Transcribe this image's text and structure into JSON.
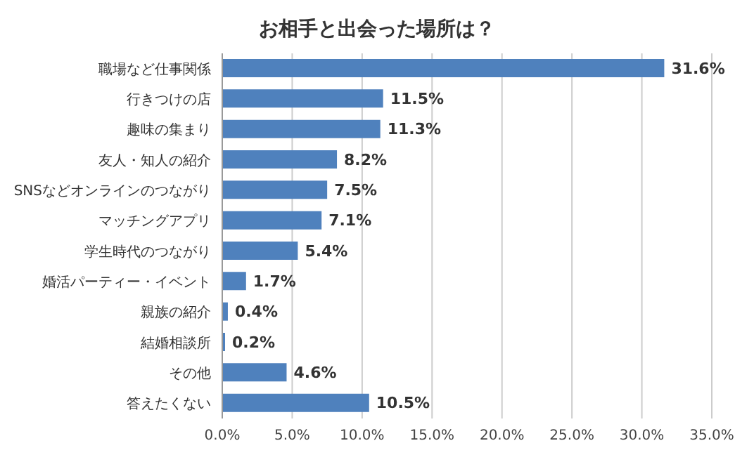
{
  "chart_data": {
    "type": "bar",
    "orientation": "horizontal",
    "title": "お相手と出会った場所は？",
    "categories": [
      "職場など仕事関係",
      "行きつけの店",
      "趣味の集まり",
      "友人・知人の紹介",
      "SNSなどオンラインのつながり",
      "マッチングアプリ",
      "学生時代のつながり",
      "婚活パーティー・イベント",
      "親族の紹介",
      "結婚相談所",
      "その他",
      "答えたくない"
    ],
    "values": [
      31.6,
      11.5,
      11.3,
      8.2,
      7.5,
      7.1,
      5.4,
      1.7,
      0.4,
      0.2,
      4.6,
      10.5
    ],
    "value_labels": [
      "31.6%",
      "11.5%",
      "11.3%",
      "8.2%",
      "7.5%",
      "7.1%",
      "5.4%",
      "1.7%",
      "0.4%",
      "0.2%",
      "4.6%",
      "10.5%"
    ],
    "color": "#4f81bd",
    "xlim": [
      0,
      35
    ],
    "xticks": [
      {
        "value": 0,
        "label": "0.0%"
      },
      {
        "value": 5,
        "label": "5.0%"
      },
      {
        "value": 10,
        "label": "10.0%"
      },
      {
        "value": 15,
        "label": "15.0%"
      },
      {
        "value": 20,
        "label": "20.0%"
      },
      {
        "value": 25,
        "label": "25.0%"
      },
      {
        "value": 30,
        "label": "30.0%"
      },
      {
        "value": 35,
        "label": "35.0%"
      }
    ],
    "grid": "x"
  }
}
